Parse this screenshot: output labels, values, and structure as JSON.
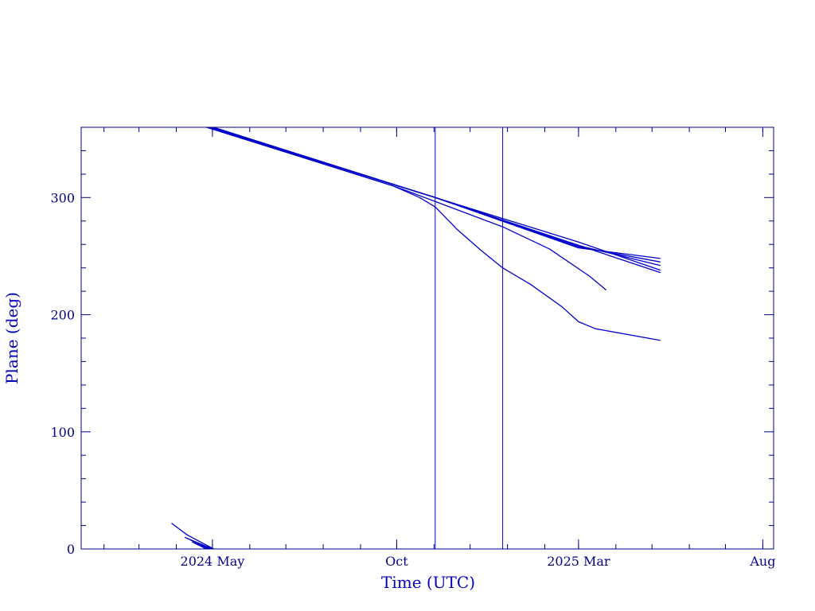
{
  "chart_data": {
    "type": "line",
    "title": "",
    "xlabel": "Time (UTC)",
    "ylabel": "Plane (deg)",
    "xlim": [
      "2024-01-13",
      "2025-08-10"
    ],
    "ylim": [
      0,
      360
    ],
    "grid": false,
    "x_ticks": [
      {
        "date": "2024-05-01",
        "label": "2024 May"
      },
      {
        "date": "2024-10-01",
        "label": "Oct"
      },
      {
        "date": "2025-03-01",
        "label": "2025 Mar"
      },
      {
        "date": "2025-08-01",
        "label": "Aug"
      }
    ],
    "y_ticks": [
      0,
      100,
      200,
      300
    ],
    "vertical_markers": [
      "2024-11-02",
      "2024-12-28"
    ],
    "colors": {
      "series": "#0000cd",
      "axis": "#00008b",
      "marker": "#0000cd"
    },
    "series": [
      {
        "points": [
          [
            "2024-03-28",
            22
          ],
          [
            "2024-04-10",
            12
          ],
          [
            "2024-05-02",
            0
          ],
          [
            "2024-05-02",
            360
          ],
          [
            "2024-11-02",
            300
          ],
          [
            "2025-05-08",
            236
          ]
        ]
      },
      {
        "points": [
          [
            "2024-04-08",
            10
          ],
          [
            "2024-05-01",
            0
          ],
          [
            "2024-05-01",
            360
          ],
          [
            "2024-11-02",
            300
          ],
          [
            "2025-03-01",
            262
          ],
          [
            "2025-05-08",
            238
          ]
        ]
      },
      {
        "points": [
          [
            "2024-04-10",
            9
          ],
          [
            "2024-04-30",
            0
          ],
          [
            "2024-04-30",
            360
          ],
          [
            "2024-11-02",
            300
          ],
          [
            "2025-03-01",
            259
          ],
          [
            "2025-05-08",
            242
          ]
        ]
      },
      {
        "points": [
          [
            "2024-04-12",
            8
          ],
          [
            "2024-04-29",
            0
          ],
          [
            "2024-04-29",
            360
          ],
          [
            "2024-11-02",
            300
          ],
          [
            "2025-03-01",
            258
          ],
          [
            "2025-05-08",
            245
          ]
        ]
      },
      {
        "points": [
          [
            "2024-04-14",
            6
          ],
          [
            "2024-04-28",
            0
          ],
          [
            "2024-04-28",
            360
          ],
          [
            "2024-11-02",
            300
          ],
          [
            "2025-03-01",
            257
          ],
          [
            "2025-05-08",
            248
          ]
        ]
      },
      {
        "points": [
          [
            "2024-04-16",
            5
          ],
          [
            "2024-04-27",
            0
          ],
          [
            "2024-04-27",
            360
          ],
          [
            "2024-10-01",
            309
          ],
          [
            "2024-12-28",
            275
          ],
          [
            "2025-02-05",
            256
          ],
          [
            "2025-03-10",
            233
          ],
          [
            "2025-03-24",
            221
          ],
          [
            "2025-03-24",
            242
          ]
        ]
      },
      {
        "points": [
          [
            "2024-04-18",
            4
          ],
          [
            "2024-04-26",
            0
          ],
          [
            "2024-04-26",
            360
          ],
          [
            "2024-09-28",
            310
          ],
          [
            "2024-10-20",
            300
          ],
          [
            "2024-11-02",
            292
          ],
          [
            "2024-11-20",
            273
          ],
          [
            "2024-12-10",
            255
          ],
          [
            "2024-12-28",
            240
          ],
          [
            "2025-01-20",
            226
          ],
          [
            "2025-02-15",
            207
          ],
          [
            "2025-03-01",
            194
          ],
          [
            "2025-03-15",
            188
          ],
          [
            "2025-05-08",
            178
          ]
        ]
      }
    ]
  }
}
